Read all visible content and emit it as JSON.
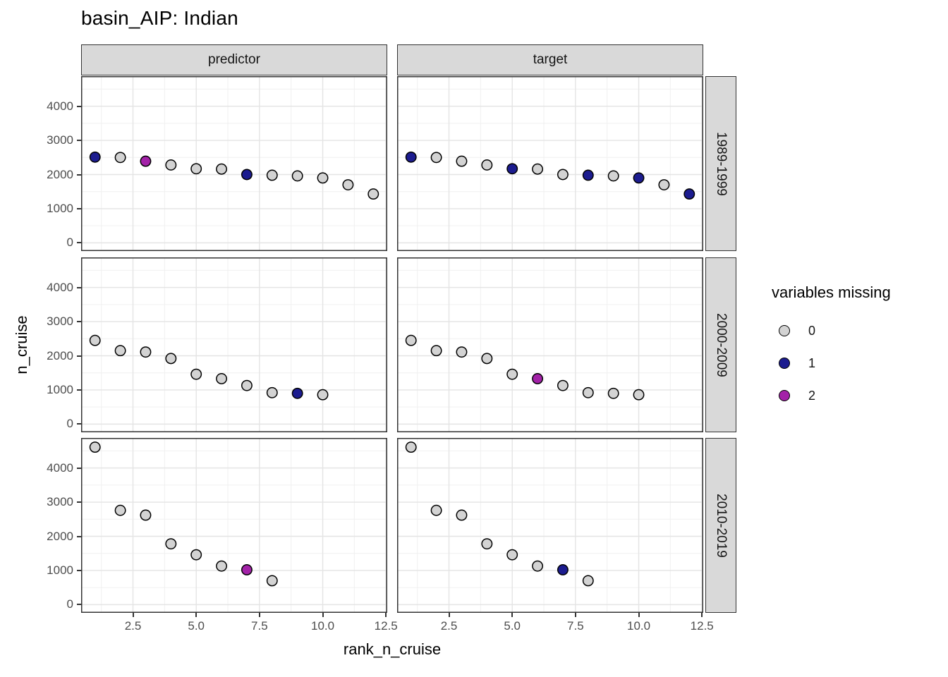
{
  "title": "basin_AIP: Indian",
  "axes": {
    "x_label": "rank_n_cruise",
    "y_label": "n_cruise",
    "x_tick_labels": [
      "2.5",
      "5.0",
      "7.5",
      "10.0",
      "12.5"
    ],
    "y_tick_labels": [
      "0",
      "1000",
      "2000",
      "3000",
      "4000"
    ]
  },
  "facets": {
    "columns": [
      "predictor",
      "target"
    ],
    "rows": [
      "1989-1999",
      "2000-2009",
      "2010-2019"
    ]
  },
  "legend": {
    "title": "variables missing",
    "items": [
      {
        "label": "0",
        "color": "#d3d3d3"
      },
      {
        "label": "1",
        "color": "#1c1c8f"
      },
      {
        "label": "2",
        "color": "#a322a8"
      }
    ]
  },
  "chart_data": {
    "type": "scatter",
    "title": "basin_AIP: Indian",
    "xlabel": "rank_n_cruise",
    "ylabel": "n_cruise",
    "x_axis": {
      "domain": [
        0.45,
        12.55
      ],
      "major_ticks": [
        2.5,
        5.0,
        7.5,
        10.0,
        12.5
      ],
      "minor_ticks": [
        1.25,
        3.75,
        6.25,
        8.75,
        11.25
      ]
    },
    "y_axis": {
      "domain": [
        -240,
        4880
      ],
      "major_ticks": [
        0,
        1000,
        2000,
        3000,
        4000
      ],
      "minor_ticks": [
        500,
        1500,
        2500,
        3500,
        4500
      ]
    },
    "grid": "major+minor",
    "legend_position": "right",
    "color_by": "variables missing",
    "colors": {
      "0": "#d3d3d3",
      "1": "#1c1c8f",
      "2": "#a322a8"
    },
    "point_format": "[rank_n_cruise, n_cruise, variables_missing]",
    "panels": [
      {
        "facet_col": "predictor",
        "facet_row": "1989-1999",
        "points": [
          [
            1,
            2510,
            1
          ],
          [
            2,
            2500,
            0
          ],
          [
            3,
            2390,
            2
          ],
          [
            4,
            2280,
            0
          ],
          [
            5,
            2170,
            0
          ],
          [
            6,
            2160,
            0
          ],
          [
            7,
            2000,
            1
          ],
          [
            8,
            1980,
            0
          ],
          [
            9,
            1960,
            0
          ],
          [
            10,
            1900,
            0
          ],
          [
            11,
            1700,
            0
          ],
          [
            12,
            1430,
            0
          ]
        ]
      },
      {
        "facet_col": "target",
        "facet_row": "1989-1999",
        "points": [
          [
            1,
            2510,
            1
          ],
          [
            2,
            2500,
            0
          ],
          [
            3,
            2390,
            0
          ],
          [
            4,
            2280,
            0
          ],
          [
            5,
            2170,
            1
          ],
          [
            6,
            2160,
            0
          ],
          [
            7,
            2000,
            0
          ],
          [
            8,
            1980,
            1
          ],
          [
            9,
            1960,
            0
          ],
          [
            10,
            1900,
            1
          ],
          [
            11,
            1700,
            0
          ],
          [
            12,
            1430,
            1
          ]
        ]
      },
      {
        "facet_col": "predictor",
        "facet_row": "2000-2009",
        "points": [
          [
            1,
            2450,
            0
          ],
          [
            2,
            2150,
            0
          ],
          [
            3,
            2110,
            0
          ],
          [
            4,
            1920,
            0
          ],
          [
            5,
            1460,
            0
          ],
          [
            6,
            1330,
            0
          ],
          [
            7,
            1130,
            0
          ],
          [
            8,
            920,
            0
          ],
          [
            9,
            900,
            1
          ],
          [
            10,
            860,
            0
          ]
        ]
      },
      {
        "facet_col": "target",
        "facet_row": "2000-2009",
        "points": [
          [
            1,
            2450,
            0
          ],
          [
            2,
            2150,
            0
          ],
          [
            3,
            2110,
            0
          ],
          [
            4,
            1920,
            0
          ],
          [
            5,
            1460,
            0
          ],
          [
            6,
            1330,
            2
          ],
          [
            7,
            1130,
            0
          ],
          [
            8,
            920,
            0
          ],
          [
            9,
            900,
            0
          ],
          [
            10,
            860,
            0
          ]
        ]
      },
      {
        "facet_col": "predictor",
        "facet_row": "2010-2019",
        "points": [
          [
            1,
            4610,
            0
          ],
          [
            2,
            2760,
            0
          ],
          [
            3,
            2620,
            0
          ],
          [
            4,
            1780,
            0
          ],
          [
            5,
            1460,
            0
          ],
          [
            6,
            1130,
            0
          ],
          [
            7,
            1020,
            2
          ],
          [
            8,
            700,
            0
          ]
        ]
      },
      {
        "facet_col": "target",
        "facet_row": "2010-2019",
        "points": [
          [
            1,
            4610,
            0
          ],
          [
            2,
            2760,
            0
          ],
          [
            3,
            2620,
            0
          ],
          [
            4,
            1780,
            0
          ],
          [
            5,
            1460,
            0
          ],
          [
            6,
            1130,
            0
          ],
          [
            7,
            1020,
            1
          ],
          [
            8,
            700,
            0
          ]
        ]
      }
    ]
  }
}
